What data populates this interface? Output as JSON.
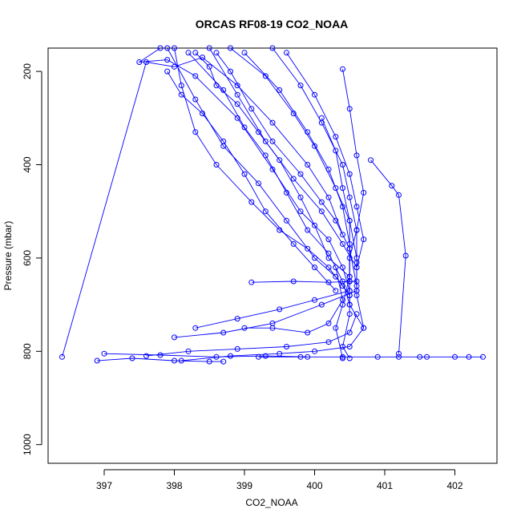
{
  "chart_data": {
    "type": "scatter",
    "title": "ORCAS RF08-19 CO2_NOAA",
    "xlabel": "CO2_NOAA",
    "ylabel": "Pressure (mbar)",
    "xlim": [
      396.2,
      402.6
    ],
    "ylim": [
      1040,
      150
    ],
    "y_reversed": true,
    "grid": false,
    "legend": "none",
    "x_ticks": [
      397,
      398,
      399,
      400,
      401,
      402
    ],
    "y_ticks": [
      200,
      400,
      600,
      800,
      1000
    ],
    "colors": {
      "series": "#0000ff",
      "axis": "#000000"
    },
    "series": [
      {
        "points": [
          [
            398.0,
            150
          ],
          [
            398.1,
            230
          ],
          [
            398.3,
            330
          ],
          [
            398.6,
            400
          ],
          [
            399.1,
            480
          ],
          [
            399.5,
            540
          ],
          [
            399.9,
            580
          ],
          [
            400.2,
            620
          ],
          [
            400.4,
            660
          ],
          [
            400.5,
            680
          ]
        ]
      },
      {
        "points": [
          [
            397.9,
            150
          ],
          [
            398.3,
            260
          ],
          [
            398.7,
            360
          ],
          [
            399.2,
            440
          ],
          [
            399.6,
            520
          ],
          [
            400.0,
            600
          ],
          [
            400.3,
            640
          ],
          [
            400.5,
            680
          ],
          [
            400.5,
            720
          ],
          [
            400.4,
            790
          ],
          [
            400.5,
            815
          ]
        ]
      },
      {
        "points": [
          [
            398.5,
            150
          ],
          [
            398.9,
            250
          ],
          [
            399.3,
            350
          ],
          [
            399.7,
            430
          ],
          [
            400.1,
            500
          ],
          [
            400.4,
            570
          ],
          [
            400.6,
            620
          ],
          [
            400.6,
            680
          ],
          [
            400.7,
            750
          ]
        ]
      },
      {
        "points": [
          [
            398.8,
            150
          ],
          [
            399.3,
            210
          ],
          [
            399.7,
            290
          ],
          [
            400.0,
            360
          ],
          [
            400.3,
            450
          ],
          [
            400.5,
            520
          ],
          [
            400.6,
            600
          ],
          [
            400.6,
            670
          ]
        ]
      },
      {
        "points": [
          [
            399.4,
            150
          ],
          [
            399.8,
            230
          ],
          [
            400.1,
            310
          ],
          [
            400.4,
            400
          ],
          [
            400.5,
            470
          ],
          [
            400.6,
            540
          ],
          [
            400.6,
            610
          ]
        ]
      },
      {
        "points": [
          [
            398.2,
            160
          ],
          [
            398.7,
            240
          ],
          [
            399.0,
            320
          ],
          [
            399.3,
            380
          ],
          [
            399.6,
            460
          ],
          [
            399.9,
            540
          ],
          [
            400.2,
            590
          ],
          [
            400.4,
            650
          ],
          [
            400.5,
            700
          ]
        ]
      },
      {
        "points": [
          [
            397.8,
            150
          ],
          [
            397.5,
            180
          ],
          [
            397.9,
            175
          ],
          [
            398.3,
            210
          ],
          [
            398.9,
            300
          ],
          [
            399.4,
            410
          ],
          [
            399.8,
            500
          ],
          [
            400.2,
            560
          ],
          [
            400.4,
            620
          ],
          [
            400.5,
            670
          ]
        ]
      },
      {
        "points": [
          [
            399.6,
            160
          ],
          [
            400.0,
            250
          ],
          [
            400.3,
            340
          ],
          [
            400.5,
            420
          ],
          [
            400.6,
            490
          ],
          [
            400.7,
            560
          ],
          [
            400.6,
            620
          ]
        ]
      },
      {
        "points": [
          [
            400.4,
            195
          ],
          [
            400.5,
            280
          ],
          [
            400.6,
            380
          ],
          [
            400.7,
            460
          ],
          [
            400.6,
            540
          ],
          [
            400.5,
            600
          ],
          [
            400.5,
            650
          ]
        ]
      },
      {
        "points": [
          [
            398.6,
            160
          ],
          [
            398.8,
            200
          ],
          [
            399.1,
            280
          ],
          [
            399.4,
            350
          ],
          [
            399.8,
            420
          ],
          [
            400.1,
            480
          ],
          [
            400.3,
            520
          ],
          [
            400.5,
            580
          ],
          [
            400.6,
            660
          ]
        ]
      },
      {
        "points": [
          [
            396.4,
            812
          ],
          [
            397.6,
            180
          ],
          [
            398.0,
            190
          ],
          [
            398.4,
            170
          ],
          [
            398.9,
            230
          ],
          [
            399.4,
            310
          ],
          [
            399.9,
            400
          ],
          [
            400.2,
            470
          ],
          [
            400.4,
            550
          ]
        ]
      },
      {
        "points": [
          [
            400.8,
            390
          ],
          [
            401.1,
            445
          ],
          [
            401.2,
            465
          ],
          [
            401.3,
            595
          ],
          [
            401.2,
            805
          ]
        ]
      },
      {
        "points": [
          [
            398.1,
            820
          ],
          [
            398.8,
            810
          ],
          [
            399.5,
            805
          ],
          [
            400.0,
            800
          ],
          [
            400.5,
            790
          ],
          [
            400.7,
            750
          ],
          [
            400.5,
            700
          ],
          [
            400.5,
            650
          ]
        ]
      },
      {
        "points": [
          [
            398.3,
            750
          ],
          [
            398.9,
            730
          ],
          [
            399.5,
            710
          ],
          [
            400.0,
            690
          ],
          [
            400.5,
            670
          ]
        ]
      },
      {
        "points": [
          [
            398.0,
            770
          ],
          [
            398.7,
            760
          ],
          [
            399.4,
            740
          ],
          [
            400.1,
            700
          ],
          [
            400.6,
            670
          ]
        ]
      },
      {
        "points": [
          [
            396.9,
            820
          ],
          [
            397.4,
            815
          ],
          [
            398.0,
            820
          ],
          [
            398.5,
            822
          ],
          [
            398.7,
            822
          ]
        ]
      },
      {
        "points": [
          [
            397.0,
            805
          ],
          [
            397.8,
            808
          ],
          [
            398.6,
            812
          ],
          [
            399.3,
            810
          ],
          [
            399.9,
            812
          ]
        ]
      },
      {
        "points": [
          [
            399.2,
            812
          ],
          [
            399.8,
            812
          ],
          [
            400.4,
            812
          ],
          [
            400.9,
            812
          ],
          [
            401.2,
            812
          ],
          [
            401.5,
            812
          ],
          [
            401.6,
            812
          ],
          [
            402.0,
            812
          ],
          [
            402.2,
            812
          ],
          [
            402.4,
            812
          ]
        ]
      },
      {
        "points": [
          [
            399.1,
            652
          ],
          [
            399.7,
            650
          ],
          [
            400.2,
            652
          ],
          [
            400.6,
            650
          ]
        ]
      },
      {
        "points": [
          [
            398.3,
            160
          ],
          [
            398.5,
            190
          ],
          [
            398.6,
            230
          ],
          [
            398.9,
            270
          ],
          [
            399.2,
            330
          ],
          [
            399.5,
            390
          ],
          [
            399.8,
            470
          ],
          [
            400.0,
            530
          ],
          [
            400.2,
            600
          ],
          [
            400.5,
            640
          ]
        ]
      },
      {
        "points": [
          [
            397.9,
            200
          ],
          [
            398.1,
            250
          ],
          [
            398.4,
            290
          ],
          [
            398.7,
            350
          ],
          [
            399.0,
            420
          ],
          [
            399.3,
            500
          ],
          [
            399.7,
            570
          ],
          [
            400.0,
            620
          ],
          [
            400.3,
            670
          ]
        ]
      },
      {
        "points": [
          [
            400.1,
            300
          ],
          [
            400.3,
            370
          ],
          [
            400.4,
            450
          ],
          [
            400.5,
            520
          ],
          [
            400.5,
            580
          ],
          [
            400.5,
            640
          ],
          [
            400.4,
            700
          ],
          [
            400.3,
            750
          ],
          [
            400.4,
            815
          ]
        ]
      },
      {
        "points": [
          [
            399.0,
            160
          ],
          [
            399.5,
            240
          ],
          [
            399.9,
            330
          ],
          [
            400.2,
            410
          ],
          [
            400.4,
            490
          ],
          [
            400.5,
            570
          ],
          [
            400.5,
            650
          ]
        ]
      },
      {
        "points": [
          [
            397.6,
            810
          ],
          [
            398.2,
            800
          ],
          [
            398.9,
            795
          ],
          [
            399.6,
            790
          ],
          [
            400.2,
            780
          ],
          [
            400.5,
            760
          ],
          [
            400.6,
            720
          ]
        ]
      },
      {
        "points": [
          [
            400.3,
            620
          ],
          [
            400.4,
            690
          ],
          [
            400.2,
            740
          ],
          [
            399.9,
            760
          ],
          [
            399.4,
            750
          ],
          [
            399.0,
            750
          ]
        ]
      }
    ]
  }
}
